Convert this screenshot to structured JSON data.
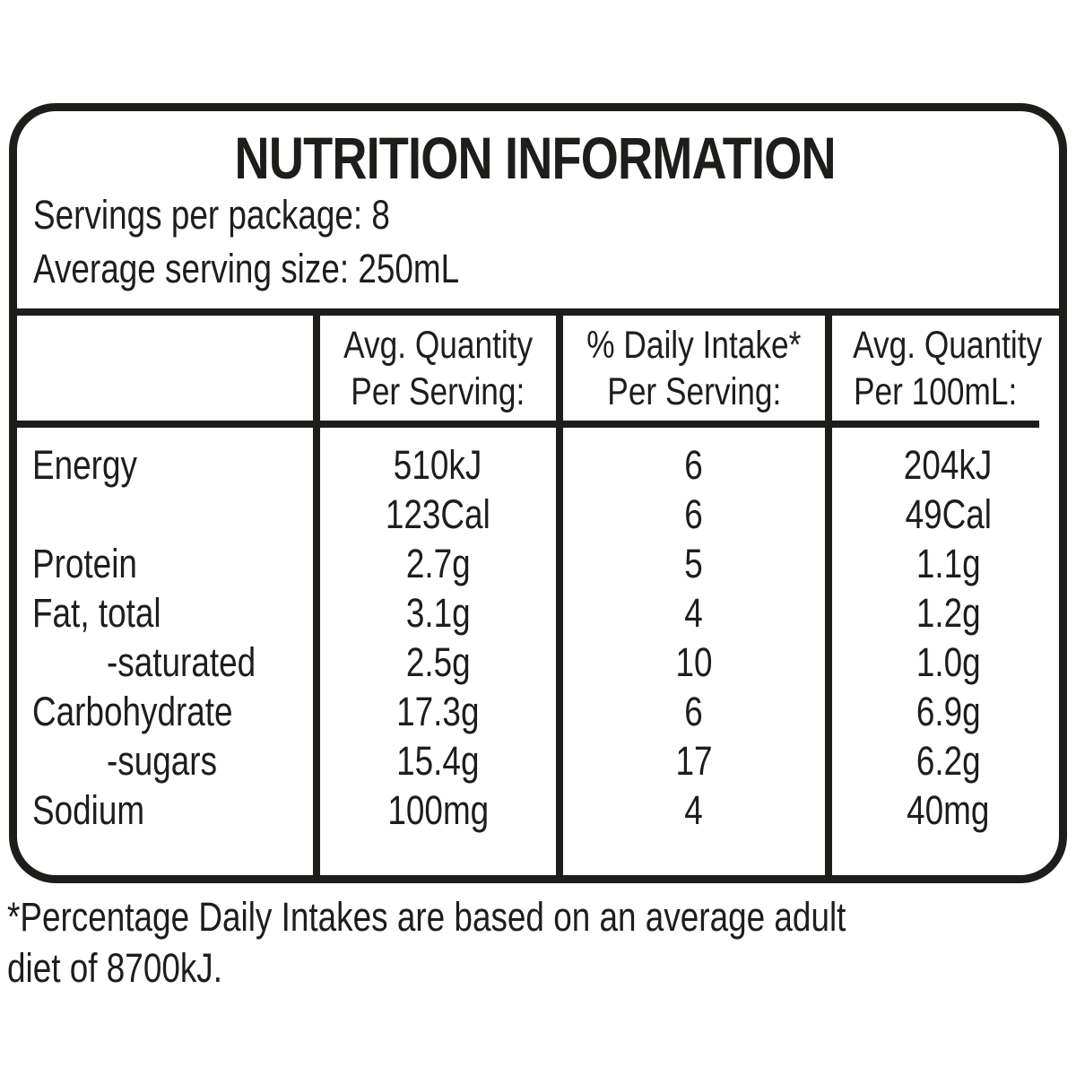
{
  "label": {
    "title": "NUTRITION INFORMATION",
    "servings_per_package": "Servings per package: 8",
    "serving_size": "Average serving size: 250mL",
    "table": {
      "headers": {
        "per_serving": {
          "line1": "Avg. Quantity",
          "line2": "Per Serving:"
        },
        "daily_intake": {
          "line1": "% Daily Intake*",
          "line2": "Per Serving:"
        },
        "per_100ml": {
          "line1": "Avg. Quantity",
          "line2": "Per 100mL:"
        }
      },
      "rows": [
        {
          "label": "Energy",
          "per_serving": "510kJ",
          "daily_intake": "6",
          "per_100ml": "204kJ"
        },
        {
          "label": "",
          "per_serving": "123Cal",
          "daily_intake": "6",
          "per_100ml": "49Cal"
        },
        {
          "label": "Protein",
          "per_serving": "2.7g",
          "daily_intake": "5",
          "per_100ml": "1.1g"
        },
        {
          "label": "Fat, total",
          "per_serving": "3.1g",
          "daily_intake": "4",
          "per_100ml": "1.2g"
        },
        {
          "label": "-saturated",
          "per_serving": "2.5g",
          "daily_intake": "10",
          "per_100ml": "1.0g"
        },
        {
          "label": "Carbohydrate",
          "per_serving": "17.3g",
          "daily_intake": "6",
          "per_100ml": "6.9g"
        },
        {
          "label": "-sugars",
          "per_serving": "15.4g",
          "daily_intake": "17",
          "per_100ml": "6.2g"
        },
        {
          "label": "Sodium",
          "per_serving": "100mg",
          "daily_intake": "4",
          "per_100ml": "40mg"
        }
      ]
    },
    "footnote_line1": "*Percentage Daily Intakes are based on an average adult",
    "footnote_line2": "diet of 8700kJ.",
    "colors": {
      "ink": "#1d1d1b",
      "background": "#ffffff"
    }
  }
}
